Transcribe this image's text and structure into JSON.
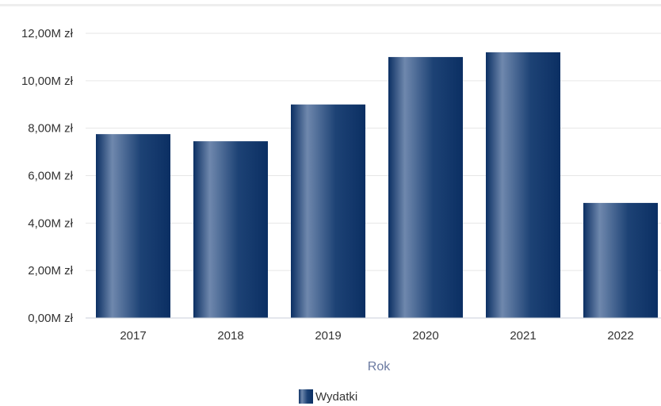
{
  "chart_data": {
    "type": "bar",
    "categories": [
      "2017",
      "2018",
      "2019",
      "2020",
      "2021",
      "2022"
    ],
    "series": [
      {
        "name": "Wydatki",
        "values": [
          7.75,
          7.45,
          9.0,
          11.0,
          11.2,
          4.85
        ]
      }
    ],
    "xlabel": "Rok",
    "ylabel": "",
    "ylim": [
      0,
      12
    ],
    "y_ticks": [
      "0,00M zł",
      "2,00M zł",
      "4,00M zł",
      "6,00M zł",
      "8,00M zł",
      "10,00M zł",
      "12,00M zł"
    ],
    "grid": true,
    "legend_position": "bottom-center",
    "colors": {
      "bar_dark": "#0b2f63",
      "bar_light": "#6f88ad",
      "grid": "#e6e6e6",
      "axis_title": "#6b7aa1"
    }
  }
}
